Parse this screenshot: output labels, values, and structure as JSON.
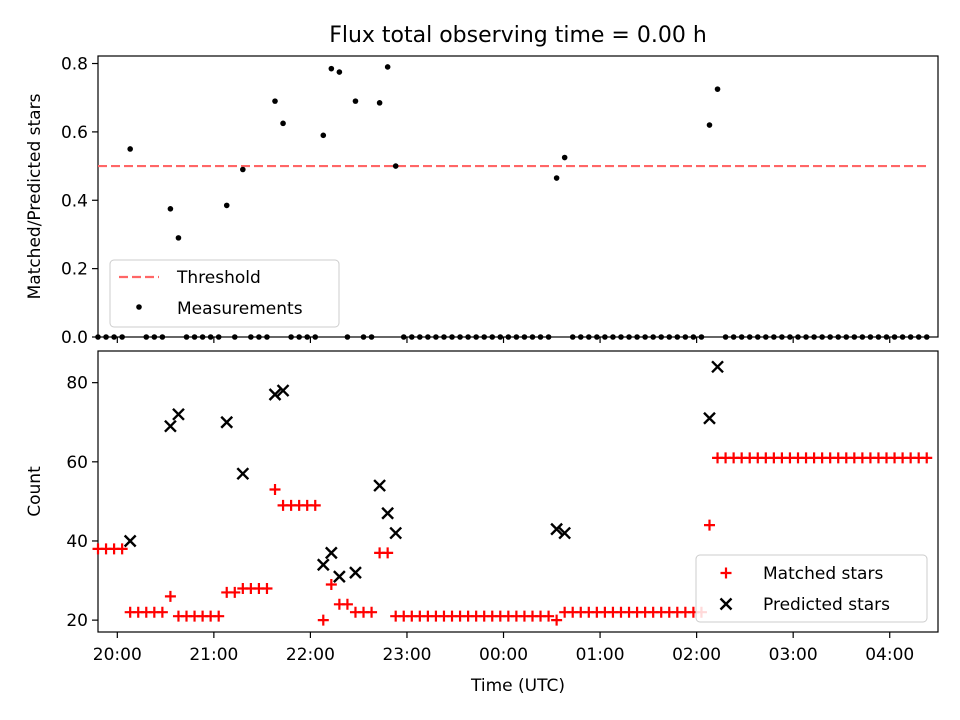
{
  "title": "Flux total observing time = 0.00 h",
  "chart_data": [
    {
      "type": "scatter",
      "ylabel": "Matched/Predicted stars",
      "ylim": [
        0,
        0.8
      ],
      "yticks": [
        "0.0",
        "0.2",
        "0.4",
        "0.6",
        "0.8"
      ],
      "xticks": [
        "20:00",
        "21:00",
        "22:00",
        "23:00",
        "00:00",
        "01:00",
        "02:00",
        "03:00",
        "04:00"
      ],
      "legend_position": "lower-left",
      "threshold": {
        "name": "Threshold",
        "value": 0.5,
        "x_start": "19:48",
        "x_end": "04:24",
        "color": "#ff6666"
      },
      "series": [
        {
          "name": "Measurements",
          "points": [
            [
              "19:48",
              0
            ],
            [
              "19:53",
              0
            ],
            [
              "19:58",
              0
            ],
            [
              "20:03",
              0
            ],
            [
              "20:08",
              0.55
            ],
            [
              "20:18",
              0
            ],
            [
              "20:23",
              0
            ],
            [
              "20:28",
              0
            ],
            [
              "20:33",
              0.375
            ],
            [
              "20:38",
              0.29
            ],
            [
              "20:43",
              0
            ],
            [
              "20:48",
              0
            ],
            [
              "20:53",
              0
            ],
            [
              "20:58",
              0
            ],
            [
              "21:03",
              0
            ],
            [
              "21:08",
              0.385
            ],
            [
              "21:13",
              0
            ],
            [
              "21:18",
              0.49
            ],
            [
              "21:23",
              0
            ],
            [
              "21:28",
              0
            ],
            [
              "21:33",
              0
            ],
            [
              "21:38",
              0.69
            ],
            [
              "21:43",
              0.625
            ],
            [
              "21:48",
              0
            ],
            [
              "21:53",
              0
            ],
            [
              "21:58",
              0
            ],
            [
              "22:03",
              0
            ],
            [
              "22:08",
              0.59
            ],
            [
              "22:13",
              0.785
            ],
            [
              "22:18",
              0.775
            ],
            [
              "22:23",
              0
            ],
            [
              "22:28",
              0.69
            ],
            [
              "22:33",
              0
            ],
            [
              "22:38",
              0
            ],
            [
              "22:43",
              0.685
            ],
            [
              "22:48",
              0.79
            ],
            [
              "22:53",
              0.5
            ],
            [
              "22:58",
              0
            ],
            [
              "23:03",
              0
            ],
            [
              "23:08",
              0
            ],
            [
              "23:13",
              0
            ],
            [
              "23:18",
              0
            ],
            [
              "23:23",
              0
            ],
            [
              "23:28",
              0
            ],
            [
              "23:33",
              0
            ],
            [
              "23:38",
              0
            ],
            [
              "23:43",
              0
            ],
            [
              "23:48",
              0
            ],
            [
              "23:53",
              0
            ],
            [
              "23:58",
              0
            ],
            [
              "00:03",
              0
            ],
            [
              "00:08",
              0
            ],
            [
              "00:13",
              0
            ],
            [
              "00:18",
              0
            ],
            [
              "00:23",
              0
            ],
            [
              "00:28",
              0
            ],
            [
              "00:33",
              0.465
            ],
            [
              "00:38",
              0.525
            ],
            [
              "00:43",
              0
            ],
            [
              "00:48",
              0
            ],
            [
              "00:53",
              0
            ],
            [
              "00:58",
              0
            ],
            [
              "01:03",
              0
            ],
            [
              "01:08",
              0
            ],
            [
              "01:13",
              0
            ],
            [
              "01:18",
              0
            ],
            [
              "01:23",
              0
            ],
            [
              "01:28",
              0
            ],
            [
              "01:33",
              0
            ],
            [
              "01:38",
              0
            ],
            [
              "01:43",
              0
            ],
            [
              "01:48",
              0
            ],
            [
              "01:53",
              0
            ],
            [
              "01:58",
              0
            ],
            [
              "02:03",
              0
            ],
            [
              "02:08",
              0.62
            ],
            [
              "02:13",
              0.725
            ],
            [
              "02:18",
              0
            ],
            [
              "02:23",
              0
            ],
            [
              "02:28",
              0
            ],
            [
              "02:33",
              0
            ],
            [
              "02:38",
              0
            ],
            [
              "02:43",
              0
            ],
            [
              "02:48",
              0
            ],
            [
              "02:53",
              0
            ],
            [
              "02:58",
              0
            ],
            [
              "03:03",
              0
            ],
            [
              "03:08",
              0
            ],
            [
              "03:13",
              0
            ],
            [
              "03:18",
              0
            ],
            [
              "03:23",
              0
            ],
            [
              "03:28",
              0
            ],
            [
              "03:33",
              0
            ],
            [
              "03:38",
              0
            ],
            [
              "03:43",
              0
            ],
            [
              "03:48",
              0
            ],
            [
              "03:53",
              0
            ],
            [
              "03:58",
              0
            ],
            [
              "04:03",
              0
            ],
            [
              "04:08",
              0
            ],
            [
              "04:13",
              0
            ],
            [
              "04:18",
              0
            ],
            [
              "04:23",
              0
            ]
          ]
        }
      ]
    },
    {
      "type": "scatter",
      "xlabel": "Time (UTC)",
      "ylabel": "Count",
      "ylim": [
        17,
        88
      ],
      "yticks": [
        "20",
        "40",
        "60",
        "80"
      ],
      "xticks": [
        "20:00",
        "21:00",
        "22:00",
        "23:00",
        "00:00",
        "01:00",
        "02:00",
        "03:00",
        "04:00"
      ],
      "legend_position": "lower-right",
      "series": [
        {
          "name": "Matched stars",
          "marker": "plus",
          "color": "#ff0000",
          "points": [
            [
              "19:48",
              38
            ],
            [
              "19:53",
              38
            ],
            [
              "19:58",
              38
            ],
            [
              "20:03",
              38
            ],
            [
              "20:08",
              22
            ],
            [
              "20:13",
              22
            ],
            [
              "20:18",
              22
            ],
            [
              "20:23",
              22
            ],
            [
              "20:28",
              22
            ],
            [
              "20:33",
              26
            ],
            [
              "20:38",
              21
            ],
            [
              "20:43",
              21
            ],
            [
              "20:48",
              21
            ],
            [
              "20:53",
              21
            ],
            [
              "20:58",
              21
            ],
            [
              "21:03",
              21
            ],
            [
              "21:08",
              27
            ],
            [
              "21:13",
              27
            ],
            [
              "21:18",
              28
            ],
            [
              "21:23",
              28
            ],
            [
              "21:28",
              28
            ],
            [
              "21:33",
              28
            ],
            [
              "21:38",
              53
            ],
            [
              "21:43",
              49
            ],
            [
              "21:48",
              49
            ],
            [
              "21:53",
              49
            ],
            [
              "21:58",
              49
            ],
            [
              "22:03",
              49
            ],
            [
              "22:08",
              20
            ],
            [
              "22:13",
              29
            ],
            [
              "22:18",
              24
            ],
            [
              "22:23",
              24
            ],
            [
              "22:28",
              22
            ],
            [
              "22:33",
              22
            ],
            [
              "22:38",
              22
            ],
            [
              "22:43",
              37
            ],
            [
              "22:48",
              37
            ],
            [
              "22:53",
              21
            ],
            [
              "22:58",
              21
            ],
            [
              "23:03",
              21
            ],
            [
              "23:08",
              21
            ],
            [
              "23:13",
              21
            ],
            [
              "23:18",
              21
            ],
            [
              "23:23",
              21
            ],
            [
              "23:28",
              21
            ],
            [
              "23:33",
              21
            ],
            [
              "23:38",
              21
            ],
            [
              "23:43",
              21
            ],
            [
              "23:48",
              21
            ],
            [
              "23:53",
              21
            ],
            [
              "23:58",
              21
            ],
            [
              "00:03",
              21
            ],
            [
              "00:08",
              21
            ],
            [
              "00:13",
              21
            ],
            [
              "00:18",
              21
            ],
            [
              "00:23",
              21
            ],
            [
              "00:28",
              21
            ],
            [
              "00:33",
              20
            ],
            [
              "00:38",
              22
            ],
            [
              "00:43",
              22
            ],
            [
              "00:48",
              22
            ],
            [
              "00:53",
              22
            ],
            [
              "00:58",
              22
            ],
            [
              "01:03",
              22
            ],
            [
              "01:08",
              22
            ],
            [
              "01:13",
              22
            ],
            [
              "01:18",
              22
            ],
            [
              "01:23",
              22
            ],
            [
              "01:28",
              22
            ],
            [
              "01:33",
              22
            ],
            [
              "01:38",
              22
            ],
            [
              "01:43",
              22
            ],
            [
              "01:48",
              22
            ],
            [
              "01:53",
              22
            ],
            [
              "01:58",
              22
            ],
            [
              "02:03",
              22
            ],
            [
              "02:08",
              44
            ],
            [
              "02:13",
              61
            ],
            [
              "02:18",
              61
            ],
            [
              "02:23",
              61
            ],
            [
              "02:28",
              61
            ],
            [
              "02:33",
              61
            ],
            [
              "02:38",
              61
            ],
            [
              "02:43",
              61
            ],
            [
              "02:48",
              61
            ],
            [
              "02:53",
              61
            ],
            [
              "02:58",
              61
            ],
            [
              "03:03",
              61
            ],
            [
              "03:08",
              61
            ],
            [
              "03:13",
              61
            ],
            [
              "03:18",
              61
            ],
            [
              "03:23",
              61
            ],
            [
              "03:28",
              61
            ],
            [
              "03:33",
              61
            ],
            [
              "03:38",
              61
            ],
            [
              "03:43",
              61
            ],
            [
              "03:48",
              61
            ],
            [
              "03:53",
              61
            ],
            [
              "03:58",
              61
            ],
            [
              "04:03",
              61
            ],
            [
              "04:08",
              61
            ],
            [
              "04:13",
              61
            ],
            [
              "04:18",
              61
            ],
            [
              "04:23",
              61
            ]
          ]
        },
        {
          "name": "Predicted stars",
          "marker": "x",
          "color": "#000000",
          "points": [
            [
              "20:08",
              40
            ],
            [
              "20:33",
              69
            ],
            [
              "20:38",
              72
            ],
            [
              "21:08",
              70
            ],
            [
              "21:18",
              57
            ],
            [
              "21:38",
              77
            ],
            [
              "21:43",
              78
            ],
            [
              "22:08",
              34
            ],
            [
              "22:13",
              37
            ],
            [
              "22:18",
              31
            ],
            [
              "22:28",
              32
            ],
            [
              "22:43",
              54
            ],
            [
              "22:48",
              47
            ],
            [
              "22:53",
              42
            ],
            [
              "00:33",
              43
            ],
            [
              "00:38",
              42
            ],
            [
              "02:08",
              71
            ],
            [
              "02:13",
              84
            ]
          ]
        }
      ]
    }
  ]
}
